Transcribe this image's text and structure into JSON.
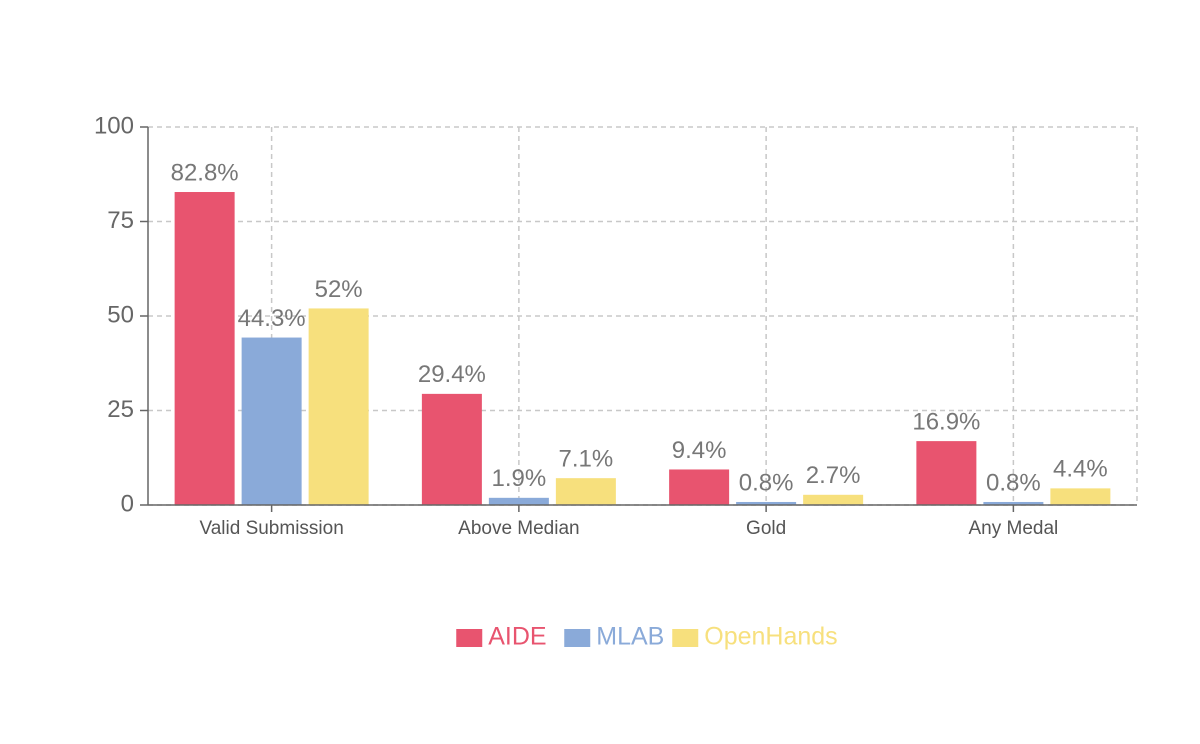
{
  "chart_data": {
    "type": "bar",
    "categories": [
      "Valid Submission",
      "Above Median",
      "Gold",
      "Any Medal"
    ],
    "series": [
      {
        "name": "AIDE",
        "color": "#e8546f",
        "values": [
          82.8,
          29.4,
          9.4,
          16.9
        ],
        "value_labels": [
          "82.8%",
          "29.4%",
          "9.4%",
          "16.9%"
        ]
      },
      {
        "name": "MLAB",
        "color": "#8aaad9",
        "values": [
          44.3,
          1.9,
          0.8,
          0.8
        ],
        "value_labels": [
          "44.3%",
          "1.9%",
          "0.8%",
          "0.8%"
        ]
      },
      {
        "name": "OpenHands",
        "color": "#f7e07d",
        "values": [
          52,
          7.1,
          2.7,
          4.4
        ],
        "value_labels": [
          "52%",
          "7.1%",
          "2.7%",
          "4.4%"
        ]
      }
    ],
    "ylim": [
      0,
      100
    ],
    "yticks": [
      0,
      25,
      50,
      75,
      100
    ],
    "grid": true,
    "legend": "bottom"
  }
}
